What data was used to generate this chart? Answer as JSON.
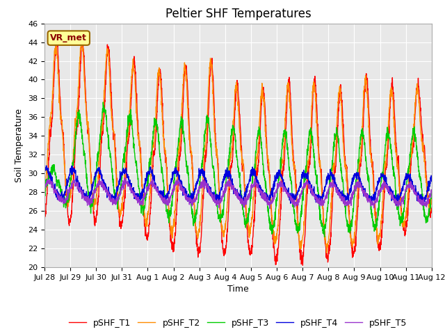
{
  "title": "Peltier SHF Temperatures",
  "xlabel": "Time",
  "ylabel": "Soil Temperature",
  "ylim": [
    20,
    46
  ],
  "yticks": [
    20,
    22,
    24,
    26,
    28,
    30,
    32,
    34,
    36,
    38,
    40,
    42,
    44,
    46
  ],
  "xtick_labels": [
    "Jul 28",
    "Jul 29",
    "Jul 30",
    "Jul 31",
    "Aug 1",
    "Aug 2",
    "Aug 3",
    "Aug 4",
    "Aug 5",
    "Aug 6",
    "Aug 7",
    "Aug 8",
    "Aug 9",
    "Aug 10",
    "Aug 11",
    "Aug 12"
  ],
  "annotation_text": "VR_met",
  "line_colors": [
    "#ff0000",
    "#ff8c00",
    "#00cc00",
    "#0000dd",
    "#9933cc"
  ],
  "line_labels": [
    "pSHF_T1",
    "pSHF_T2",
    "pSHF_T3",
    "pSHF_T4",
    "pSHF_T5"
  ],
  "line_widths": [
    1.0,
    1.0,
    1.0,
    1.0,
    1.0
  ],
  "ax_bg_color": "#e8e8e8",
  "grid_color": "#ffffff",
  "title_fontsize": 12,
  "axis_label_fontsize": 9,
  "tick_fontsize": 8,
  "legend_fontsize": 9
}
